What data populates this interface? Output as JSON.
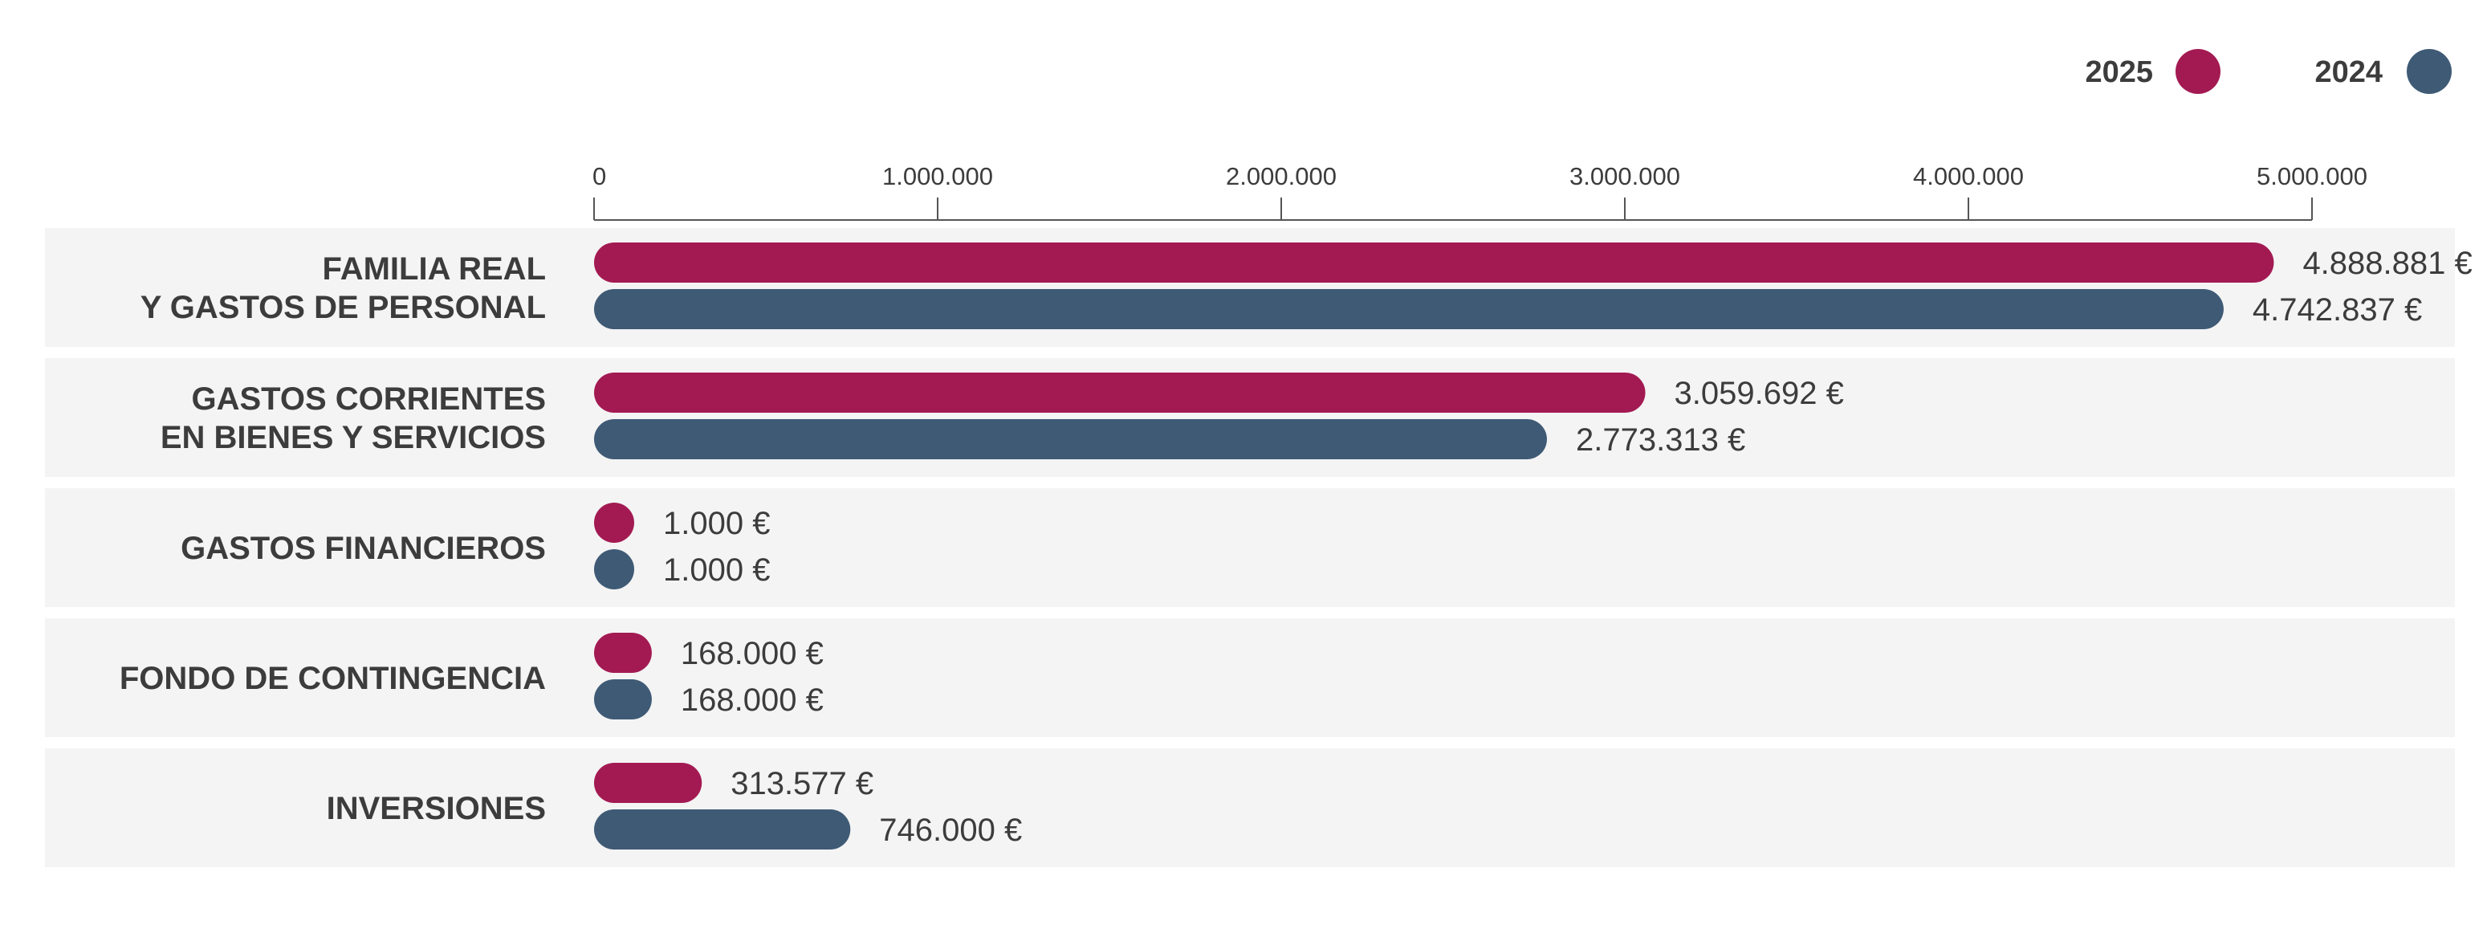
{
  "chart_data": {
    "type": "bar",
    "orientation": "horizontal",
    "categories": [
      [
        "FAMILIA REAL",
        "Y GASTOS DE PERSONAL"
      ],
      [
        "GASTOS CORRIENTES",
        "EN BIENES Y SERVICIOS"
      ],
      [
        "GASTOS FINANCIEROS"
      ],
      [
        "FONDO DE CONTINGENCIA"
      ],
      [
        "INVERSIONES"
      ]
    ],
    "series": [
      {
        "name": "2025",
        "color": "#a31a52",
        "values": [
          4888881,
          3059692,
          1000,
          168000,
          313577
        ],
        "labels": [
          "4.888.881 €",
          "3.059.692 €",
          "1.000 €",
          "168.000 €",
          "313.577 €"
        ]
      },
      {
        "name": "2024",
        "color": "#3f5a75",
        "values": [
          4742837,
          2773313,
          1000,
          168000,
          746000
        ],
        "labels": [
          "4.742.837 €",
          "2.773.313 €",
          "1.000 €",
          "168.000 €",
          "746.000 €"
        ]
      }
    ],
    "x_ticks": [
      0,
      1000000,
      2000000,
      3000000,
      4000000,
      5000000
    ],
    "x_tick_labels": [
      "0",
      "1.000.000",
      "2.000.000",
      "3.000.000",
      "4.000.000",
      "5.000.000"
    ],
    "xlim": [
      0,
      5000000
    ],
    "axis_position": "top",
    "legend_position": "top-right",
    "title": "",
    "xlabel": "",
    "ylabel": "",
    "grid": false,
    "band_color": "#f4f4f4"
  }
}
